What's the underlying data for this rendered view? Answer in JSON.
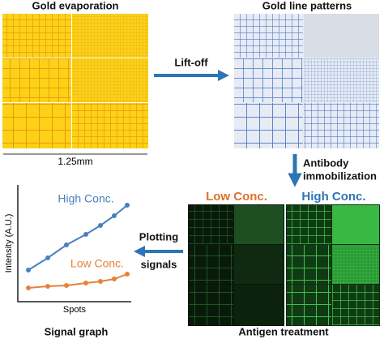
{
  "gold_evaporation": {
    "title": "Gold evaporation",
    "scale_label": "1.25mm"
  },
  "lift_off": {
    "label": "Lift-off"
  },
  "gold_line_patterns": {
    "title": "Gold line patterns"
  },
  "antibody_immobilization": {
    "label_lines": [
      "Antibody",
      "immobilization"
    ]
  },
  "antigen_treatment": {
    "title": "Antigen treatment",
    "low_label": "Low Conc.",
    "high_label": "High Conc."
  },
  "plotting_signals": {
    "label_lines": [
      "Plotting",
      "signals"
    ]
  },
  "signal_graph": {
    "title": "Signal graph",
    "y_axis_label": "Intensity (A.U.)",
    "x_axis_label": "Spots",
    "high_series_label": "High Conc.",
    "low_series_label": "Low Conc."
  }
}
